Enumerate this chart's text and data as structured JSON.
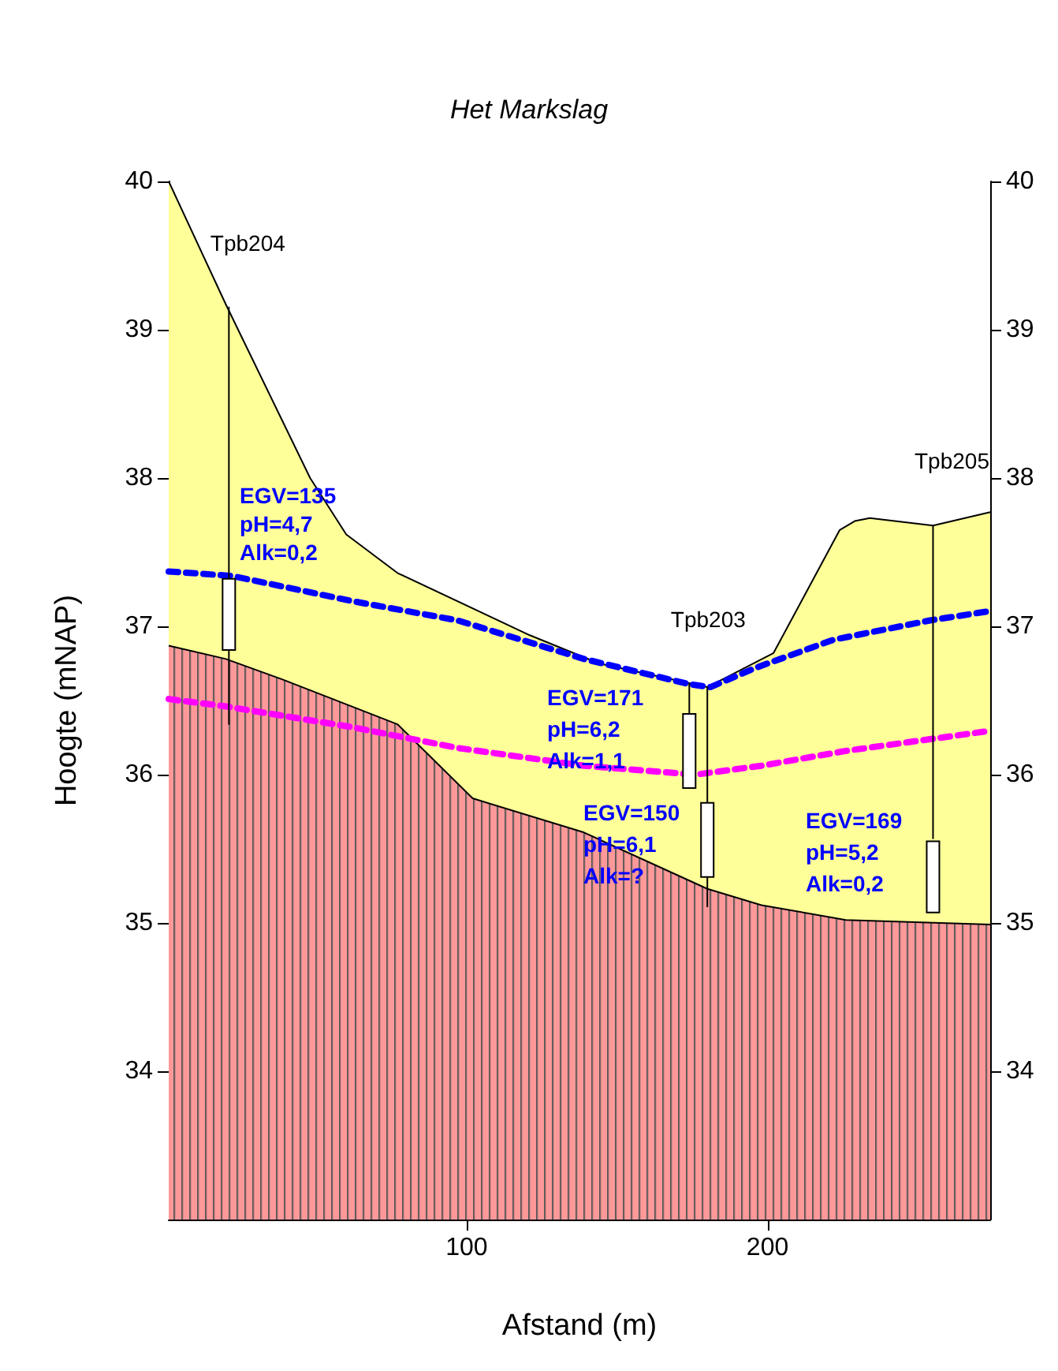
{
  "chart_data": {
    "type": "area",
    "title": "Het Markslag",
    "xlabel": "Afstand (m)",
    "ylabel": "Hoogte (mNAP)",
    "xlim": [
      1,
      274
    ],
    "xticks": [
      100,
      200
    ],
    "ylim": [
      33,
      40
    ],
    "yticks": [
      34,
      35,
      36,
      37,
      38,
      39,
      40
    ],
    "y2lim": [
      33,
      40
    ],
    "y2ticks": [
      34,
      35,
      36,
      37,
      38,
      39,
      40
    ],
    "legend": false,
    "grid": false,
    "marker": "none",
    "series": [
      {
        "color": "#ffff99",
        "x": [
          1,
          20,
          48,
          60,
          77,
          121,
          144,
          180,
          202,
          224,
          229,
          234,
          255,
          274
        ],
        "values": [
          40,
          39.17,
          38,
          37.62,
          37.36,
          36.94,
          36.75,
          36.59,
          36.82,
          37.65,
          37.71,
          37.73,
          37.68,
          37.77
        ]
      },
      {
        "color": "#ff9999",
        "x": [
          1,
          20,
          39,
          77,
          102,
          139,
          180,
          198,
          226,
          274
        ],
        "values": [
          36.87,
          36.78,
          36.64,
          36.34,
          35.84,
          35.61,
          35.23,
          35.12,
          35.02,
          34.99
        ]
      },
      {
        "type": "line",
        "color": "#0000ff",
        "line_style": "dashed",
        "x": [
          1,
          22,
          62,
          97,
          139,
          174,
          181,
          196,
          222,
          254,
          273
        ],
        "values": [
          37.37,
          37.34,
          37.17,
          37.04,
          36.78,
          36.61,
          36.59,
          36.72,
          36.91,
          37.04,
          37.1
        ]
      },
      {
        "type": "line",
        "color": "#ff00ff",
        "line_style": "dashed",
        "x": [
          1,
          20,
          62,
          97,
          139,
          176,
          198,
          226,
          272
        ],
        "values": [
          36.51,
          36.46,
          36.32,
          36.18,
          36.06,
          36,
          36.06,
          36.16,
          36.29
        ]
      },
      {
        "type": "line",
        "name": "Tpb204",
        "color": "#000000",
        "x": [
          21,
          21
        ],
        "values": [
          39.15,
          36.34
        ]
      },
      {
        "type": "line",
        "name": "Tpb203",
        "color": "#000000",
        "x": [
          174,
          174,
          177,
          180,
          180
        ],
        "values": [
          36.61,
          36.41,
          null,
          36.59,
          35.11
        ]
      },
      {
        "type": "line",
        "name": "Tpb205",
        "color": "#000000",
        "x": [
          255,
          255
        ],
        "values": [
          37.68,
          35.57
        ]
      },
      {
        "type": "bar",
        "color": "#ffffff",
        "x": [
          21,
          174,
          180,
          255
        ],
        "base": [
          36.84,
          35.91,
          35.31,
          35.07
        ],
        "values": [
          0.48,
          0.5,
          0.5,
          0.48
        ]
      }
    ],
    "annotations": [
      "EGV=135",
      "pH=4,7",
      "Alk=0,2",
      "EGV=171",
      "pH=6,2",
      "Alk=1,1",
      "EGV=150",
      "pH=6,1",
      "Alk=?",
      "EGV=169",
      "pH=5,2",
      "Alk=0,2"
    ]
  }
}
